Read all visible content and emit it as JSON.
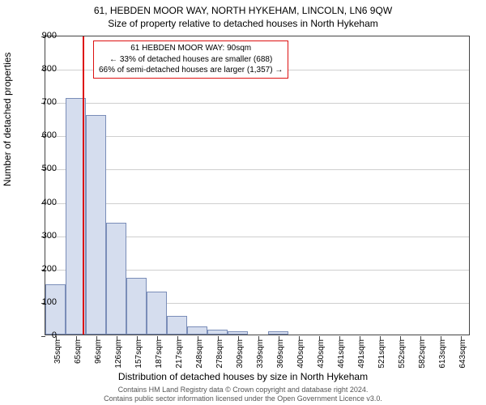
{
  "title_line1": "61, HEBDEN MOOR WAY, NORTH HYKEHAM, LINCOLN, LN6 9QW",
  "title_line2": "Size of property relative to detached houses in North Hykeham",
  "ylabel": "Number of detached properties",
  "xlabel": "Distribution of detached houses by size in North Hykeham",
  "chart": {
    "type": "histogram",
    "background_color": "#ffffff",
    "grid_color": "#cfcfcf",
    "axis_color": "#444444",
    "bar_fill": "#d5ddee",
    "bar_border": "#7a8db8",
    "marker_color": "#dd1111",
    "ylim": [
      0,
      900
    ],
    "ytick_step": 100,
    "yticks": [
      0,
      100,
      200,
      300,
      400,
      500,
      600,
      700,
      800,
      900
    ],
    "x_categories": [
      "35sqm",
      "65sqm",
      "96sqm",
      "126sqm",
      "157sqm",
      "187sqm",
      "217sqm",
      "248sqm",
      "278sqm",
      "309sqm",
      "339sqm",
      "369sqm",
      "400sqm",
      "430sqm",
      "461sqm",
      "491sqm",
      "521sqm",
      "552sqm",
      "582sqm",
      "613sqm",
      "643sqm"
    ],
    "bar_values": [
      150,
      710,
      660,
      335,
      170,
      130,
      55,
      25,
      15,
      10,
      0,
      10,
      0,
      0,
      0,
      0,
      0,
      0,
      0,
      0,
      0
    ],
    "marker_category_index": 1.85,
    "info_box": {
      "line1": "61 HEBDEN MOOR WAY: 90sqm",
      "line2": "← 33% of detached houses are smaller (688)",
      "line3": "66% of semi-detached houses are larger (1,357) →"
    },
    "label_fontsize": 12,
    "tick_fontsize": 11,
    "xtick_fontsize": 10
  },
  "footer_line1": "Contains HM Land Registry data © Crown copyright and database right 2024.",
  "footer_line2": "Contains public sector information licensed under the Open Government Licence v3.0."
}
